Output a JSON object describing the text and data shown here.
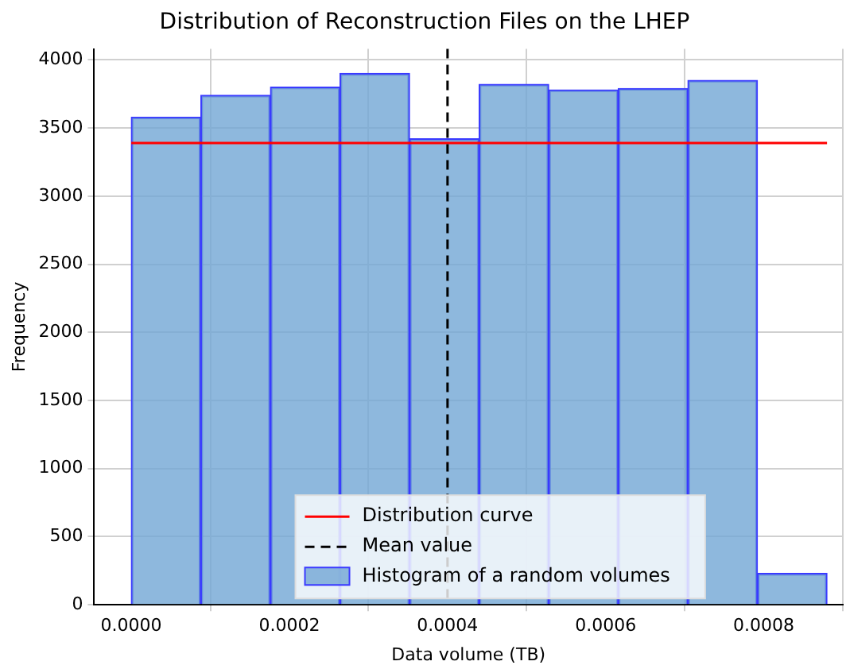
{
  "chart_data": {
    "type": "histogram",
    "title": "Distribution of Reconstruction Files on the LHEP",
    "xlabel": "Data volume (TB)",
    "ylabel": "Frequency",
    "bins": [
      0,
      8.8e-05,
      0.000176,
      0.000264,
      0.000352,
      0.00044,
      0.000528,
      0.000616,
      0.000704,
      0.000792,
      0.00088
    ],
    "series": [
      {
        "name": "Histogram of a random volumes",
        "color": "#72a6d4",
        "values": [
          3580,
          3740,
          3800,
          3900,
          3420,
          3820,
          3780,
          3790,
          3850,
          230
        ]
      },
      {
        "type": "line",
        "name": "Distribution curve",
        "color": "#ff0000",
        "x": [
          0,
          0.00088
        ],
        "values": [
          3390,
          3390
        ]
      }
    ],
    "ref_lines": [
      {
        "axis": "x",
        "value": 0.0004,
        "label": "Mean value",
        "color": "#000000",
        "line_style": "dashed"
      }
    ],
    "xlim": [
      -4.7e-05,
      0.0009
    ],
    "ylim": [
      0,
      4080
    ],
    "xticks": [
      {
        "value": 0,
        "label": "0.0000"
      },
      {
        "value": 0.0002,
        "label": "0.0002"
      },
      {
        "value": 0.0004,
        "label": "0.0004"
      },
      {
        "value": 0.0006,
        "label": "0.0006"
      },
      {
        "value": 0.0008,
        "label": "0.0008"
      }
    ],
    "yticks": [
      0,
      500,
      1000,
      1500,
      2000,
      2500,
      3000,
      3500,
      4000
    ],
    "grid": true,
    "legend": "bottom"
  }
}
